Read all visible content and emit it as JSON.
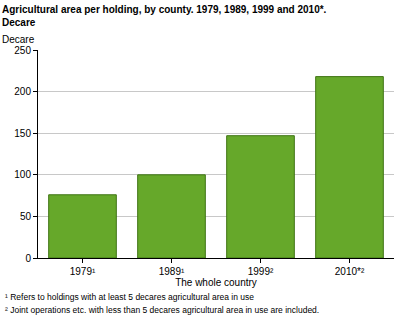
{
  "chart_data": {
    "type": "bar",
    "title": "Agricultural area per holding, by county. 1979, 1989, 1999 and 2010*.",
    "subtitle": "Decare",
    "y_label": "Decare",
    "x_label": "The whole country",
    "categories": [
      "1979¹",
      "1989¹",
      "1999²",
      "2010*²"
    ],
    "values": [
      76,
      100,
      147,
      218
    ],
    "color": "#66a82a",
    "ylim": [
      0,
      250
    ],
    "yticks": [
      0,
      50,
      100,
      150,
      200,
      250
    ],
    "grid": true,
    "annotations": [
      "¹ Refers to holdings with at least 5 decares agricultural area in use",
      "² Joint operations etc. with less than 5 decares agricultural area in use are included."
    ]
  }
}
